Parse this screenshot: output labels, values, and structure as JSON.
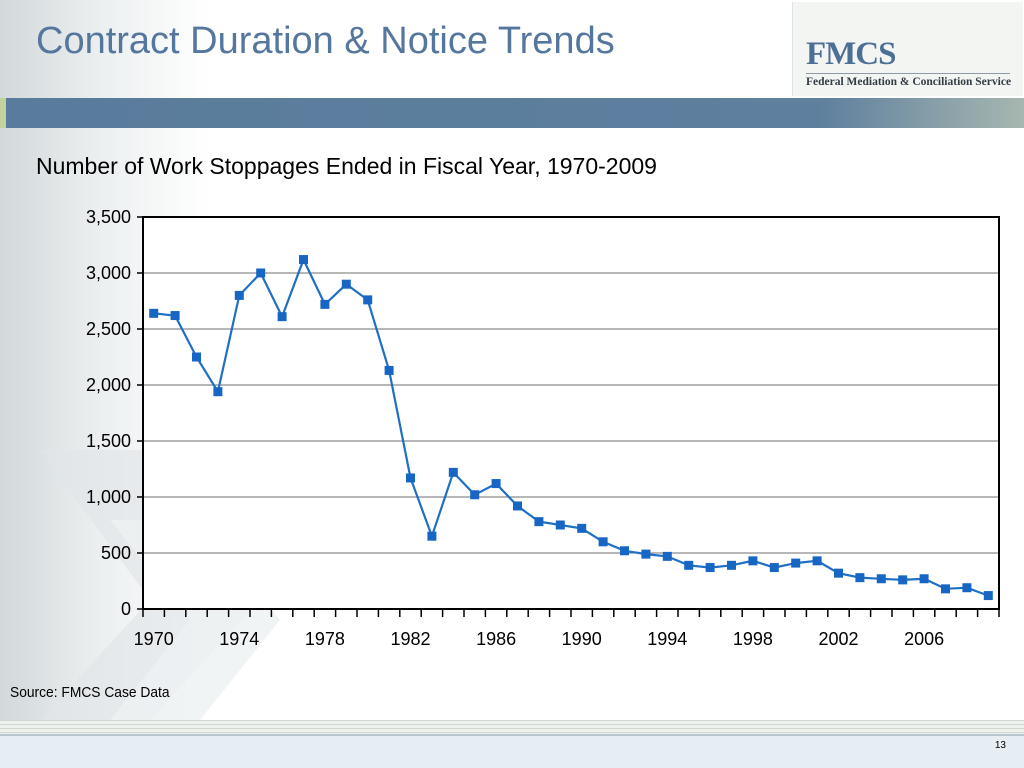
{
  "slide": {
    "title": "Contract Duration & Notice Trends",
    "logo_mark": "FMCS",
    "logo_text": "Federal Mediation & Conciliation Service",
    "source": "Source: FMCS Case Data",
    "page_number": "13"
  },
  "colors": {
    "title": "#55779e",
    "band": "#5a7c9c",
    "series": "#1f6fc5",
    "marker": "#1766c4"
  },
  "chart_data": {
    "type": "line",
    "title": "Number of Work Stoppages Ended in Fiscal Year, 1970-2009",
    "xlabel": "",
    "ylabel": "",
    "ylim": [
      0,
      3500
    ],
    "yticks": [
      0,
      500,
      1000,
      1500,
      2000,
      2500,
      3000,
      3500
    ],
    "ytick_labels": [
      "0",
      "500",
      "1,000",
      "1,500",
      "2,000",
      "2,500",
      "3,000",
      "3,500"
    ],
    "xlim": [
      1970,
      2009
    ],
    "xtick_labels": [
      "1970",
      "1974",
      "1978",
      "1982",
      "1986",
      "1990",
      "1994",
      "1998",
      "2002",
      "2006"
    ],
    "grid": true,
    "legend": "none",
    "x": [
      1970,
      1971,
      1972,
      1973,
      1974,
      1975,
      1976,
      1977,
      1978,
      1979,
      1980,
      1981,
      1982,
      1983,
      1984,
      1985,
      1986,
      1987,
      1988,
      1989,
      1990,
      1991,
      1992,
      1993,
      1994,
      1995,
      1996,
      1997,
      1998,
      1999,
      2000,
      2001,
      2002,
      2003,
      2004,
      2005,
      2006,
      2007,
      2008,
      2009
    ],
    "series": [
      {
        "values": [
          2640,
          2620,
          2250,
          1940,
          2800,
          3000,
          2610,
          3120,
          2720,
          2900,
          2760,
          2130,
          1170,
          650,
          1220,
          1020,
          1120,
          920,
          780,
          750,
          720,
          600,
          520,
          490,
          470,
          390,
          370,
          390,
          430,
          370,
          410,
          430,
          320,
          280,
          270,
          260,
          270,
          180,
          190,
          120
        ]
      }
    ]
  }
}
